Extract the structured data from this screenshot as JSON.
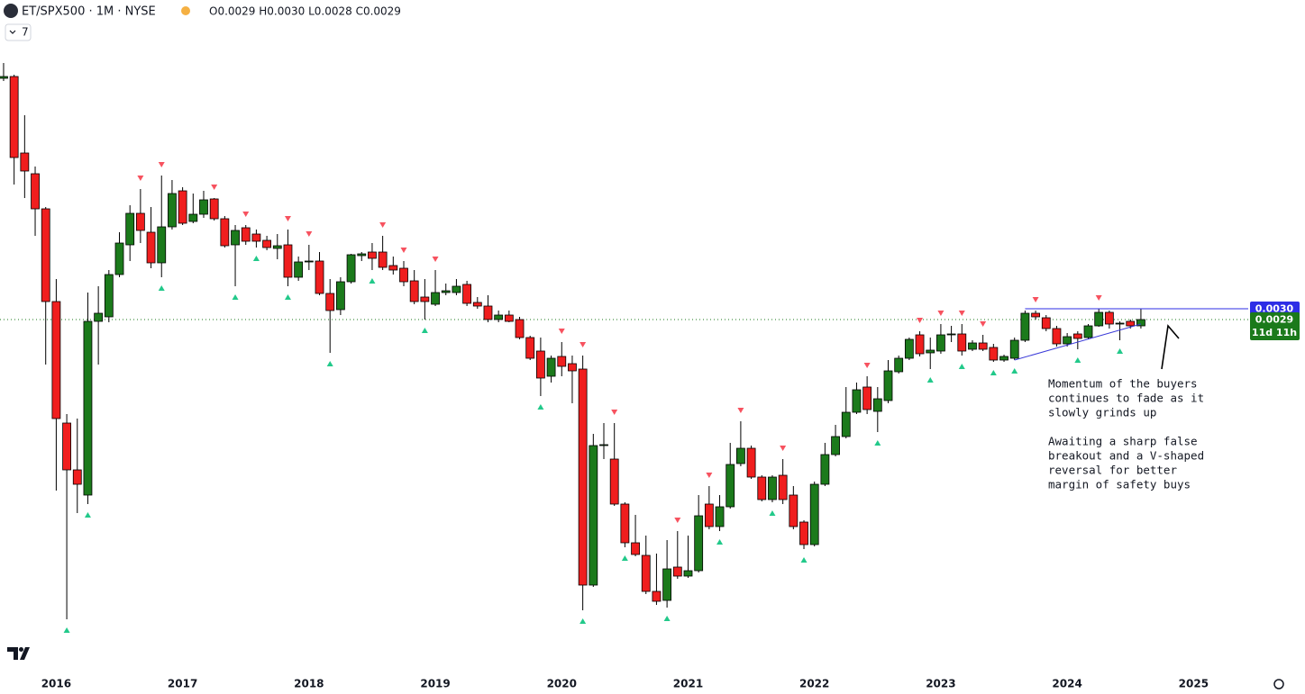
{
  "header": {
    "symbol": "ET/SPX500 · 1M · NYSE",
    "ohlc": "O0.0029 H0.0030 L0.0028 C0.0029",
    "indicators": "7"
  },
  "chart_data": {
    "type": "candlestick",
    "open": [
      0.00424,
      0.00425,
      0.003825,
      0.00371,
      0.003515,
      0.003,
      0.002325,
      0.002065,
      0.001925,
      0.00289,
      0.002915,
      0.00315,
      0.003315,
      0.00349,
      0.003385,
      0.003215,
      0.003415,
      0.003615,
      0.003445,
      0.003485,
      0.00357,
      0.00346,
      0.003315,
      0.00341,
      0.003375,
      0.00334,
      0.003295,
      0.003315,
      0.003135,
      0.00322,
      0.003225,
      0.003045,
      0.002955,
      0.00311,
      0.003255,
      0.003275,
      0.003275,
      0.0032,
      0.003185,
      0.003115,
      0.003025,
      0.002985,
      0.00305,
      0.00305,
      0.003095,
      0.002995,
      0.002975,
      0.0029,
      0.002925,
      0.0029,
      0.0028,
      0.002725,
      0.002585,
      0.002695,
      0.002655,
      0.002625,
      0.001425,
      0.0022,
      0.002125,
      0.001875,
      0.00166,
      0.00159,
      0.00139,
      0.00134,
      0.001525,
      0.001475,
      0.001505,
      0.001875,
      0.00175,
      0.00186,
      0.0021,
      0.002185,
      0.002025,
      0.0019,
      0.002035,
      0.001925,
      0.001775,
      0.00165,
      0.001985,
      0.00215,
      0.00225,
      0.002385,
      0.002525,
      0.00239,
      0.00245,
      0.00261,
      0.002685,
      0.002815,
      0.002715,
      0.002725,
      0.002815,
      0.00282,
      0.002735,
      0.00277,
      0.002745,
      0.002675,
      0.002685,
      0.002785,
      0.002935,
      0.00291,
      0.00285,
      0.002765,
      0.00282,
      0.0028,
      0.002865,
      0.00294,
      0.002875,
      0.00289,
      0.002865
    ],
    "high": [
      0.004325,
      0.00426,
      0.004035,
      0.00375,
      0.003525,
      0.003125,
      0.002375,
      0.00235,
      0.00305,
      0.003085,
      0.003175,
      0.003385,
      0.003535,
      0.003625,
      0.003525,
      0.0037,
      0.003675,
      0.003635,
      0.0036,
      0.003615,
      0.003575,
      0.003475,
      0.003425,
      0.003425,
      0.0034,
      0.003365,
      0.003375,
      0.0034,
      0.00325,
      0.003315,
      0.003275,
      0.003125,
      0.003135,
      0.003265,
      0.003275,
      0.003325,
      0.003365,
      0.00325,
      0.003225,
      0.003175,
      0.003125,
      0.003175,
      0.0031,
      0.003125,
      0.003115,
      0.003025,
      0.003035,
      0.00295,
      0.00295,
      0.002915,
      0.00281,
      0.0028,
      0.0027,
      0.002775,
      0.0027,
      0.0027,
      0.002265,
      0.002325,
      0.002325,
      0.001885,
      0.001815,
      0.0017,
      0.0016,
      0.001675,
      0.001725,
      0.0017,
      0.001925,
      0.001975,
      0.001925,
      0.002215,
      0.002335,
      0.0022,
      0.002035,
      0.002035,
      0.002125,
      0.001975,
      0.001785,
      0.002,
      0.002215,
      0.002315,
      0.002525,
      0.00255,
      0.002585,
      0.002525,
      0.002675,
      0.0027,
      0.0028,
      0.002835,
      0.0028,
      0.002875,
      0.002865,
      0.002875,
      0.002785,
      0.002815,
      0.002765,
      0.002705,
      0.0028,
      0.00295,
      0.00295,
      0.002925,
      0.002865,
      0.002825,
      0.002835,
      0.002875,
      0.00296,
      0.00295,
      0.00289,
      0.0029,
      0.00296
    ],
    "low": [
      0.004225,
      0.00365,
      0.003575,
      0.003365,
      0.00265,
      0.00195,
      0.001235,
      0.001825,
      0.001875,
      0.00265,
      0.002885,
      0.003135,
      0.003225,
      0.003325,
      0.003185,
      0.003135,
      0.0034,
      0.003425,
      0.003435,
      0.003465,
      0.00345,
      0.0033,
      0.003085,
      0.003315,
      0.0033,
      0.003285,
      0.003235,
      0.003085,
      0.003115,
      0.003175,
      0.003035,
      0.002715,
      0.002925,
      0.0031,
      0.003225,
      0.003175,
      0.003175,
      0.00315,
      0.003085,
      0.002985,
      0.0029,
      0.002975,
      0.003035,
      0.003035,
      0.002975,
      0.00296,
      0.002885,
      0.002885,
      0.002885,
      0.00279,
      0.002675,
      0.002475,
      0.00255,
      0.002585,
      0.002435,
      0.001285,
      0.001415,
      0.002125,
      0.001865,
      0.001635,
      0.001585,
      0.001375,
      0.001315,
      0.0013,
      0.00146,
      0.001465,
      0.001495,
      0.001735,
      0.001725,
      0.00185,
      0.002085,
      0.002015,
      0.00189,
      0.001885,
      0.001875,
      0.001735,
      0.001625,
      0.00164,
      0.001975,
      0.00214,
      0.00224,
      0.002375,
      0.002375,
      0.002275,
      0.002435,
      0.0026,
      0.002675,
      0.002695,
      0.002625,
      0.00271,
      0.002775,
      0.0027,
      0.002725,
      0.002725,
      0.002665,
      0.002665,
      0.002675,
      0.002775,
      0.0029,
      0.002835,
      0.00275,
      0.00275,
      0.002735,
      0.00279,
      0.00286,
      0.00285,
      0.002785,
      0.00285,
      0.00285
    ],
    "close": [
      0.00425,
      0.0038,
      0.003725,
      0.003515,
      0.003,
      0.00235,
      0.002065,
      0.001985,
      0.00289,
      0.002935,
      0.00315,
      0.003325,
      0.00349,
      0.003395,
      0.003215,
      0.003415,
      0.0036,
      0.003435,
      0.003485,
      0.003565,
      0.00346,
      0.00331,
      0.003395,
      0.003335,
      0.003335,
      0.0033,
      0.00331,
      0.003135,
      0.00322,
      0.003225,
      0.003045,
      0.00295,
      0.00311,
      0.00326,
      0.003265,
      0.00324,
      0.00319,
      0.003175,
      0.00311,
      0.003,
      0.003,
      0.00305,
      0.00306,
      0.003085,
      0.00299,
      0.002975,
      0.0029,
      0.002925,
      0.00289,
      0.0028,
      0.002685,
      0.002575,
      0.002685,
      0.00264,
      0.002615,
      0.001425,
      0.0022,
      0.002205,
      0.001875,
      0.00166,
      0.001595,
      0.00139,
      0.001335,
      0.001515,
      0.001475,
      0.001505,
      0.00181,
      0.00175,
      0.00186,
      0.002095,
      0.002185,
      0.002025,
      0.0019,
      0.002025,
      0.0019,
      0.00175,
      0.00165,
      0.001985,
      0.00215,
      0.00225,
      0.002385,
      0.00251,
      0.0024,
      0.00246,
      0.002615,
      0.002685,
      0.00279,
      0.00271,
      0.00273,
      0.002815,
      0.00282,
      0.002725,
      0.00277,
      0.002735,
      0.002675,
      0.002695,
      0.002785,
      0.002935,
      0.002915,
      0.00285,
      0.002765,
      0.002805,
      0.002795,
      0.002865,
      0.00294,
      0.002875,
      0.00288,
      0.002865,
      0.0029
    ],
    "up_color": "#1b7a1b",
    "down_color": "#f01e1e",
    "xlim": [
      -0.34,
      118.19
    ],
    "xticks": [
      {
        "value": 5,
        "label": "2016"
      },
      {
        "value": 17,
        "label": "2017"
      },
      {
        "value": 29,
        "label": "2018"
      },
      {
        "value": 41,
        "label": "2019"
      },
      {
        "value": 53,
        "label": "2020"
      },
      {
        "value": 65,
        "label": "2021"
      },
      {
        "value": 77,
        "label": "2022"
      },
      {
        "value": 89,
        "label": "2023"
      },
      {
        "value": 101,
        "label": "2024"
      },
      {
        "value": 113,
        "label": "2025"
      }
    ],
    "ylim": [
      0.00095,
      0.004675
    ],
    "fractal_highs": [
      13,
      15,
      20,
      23,
      27,
      29,
      36,
      38,
      41,
      53,
      55,
      58,
      64,
      67,
      70,
      74,
      82,
      87,
      89,
      91,
      93,
      98,
      104
    ],
    "fractal_lows": [
      6,
      8,
      15,
      22,
      24,
      27,
      31,
      35,
      40,
      51,
      55,
      59,
      63,
      68,
      73,
      76,
      83,
      88,
      91,
      94,
      96,
      102,
      106
    ],
    "marker_high_color": "#f7525f",
    "marker_low_color": "#22c98a",
    "resistance": {
      "value": 0.00296,
      "label": "0.0030",
      "start": 97,
      "color": "#2e2ee6"
    },
    "last_price": {
      "value": 0.0029,
      "label": "0.0029",
      "countdown": "11d 11h",
      "color": "#1b7a1b"
    },
    "trendline": {
      "x": [
        96,
        108
      ],
      "y": [
        0.002675,
        0.002875
      ],
      "color": "#3a3ad8"
    },
    "annotations": [
      [
        "Momentum of the buyers",
        "continues to fade as it",
        "slowly grinds up"
      ],
      [
        "Awaiting a sharp false",
        "breakout and a V-shaped",
        "reversal for better",
        "margin of safety buys"
      ]
    ]
  }
}
